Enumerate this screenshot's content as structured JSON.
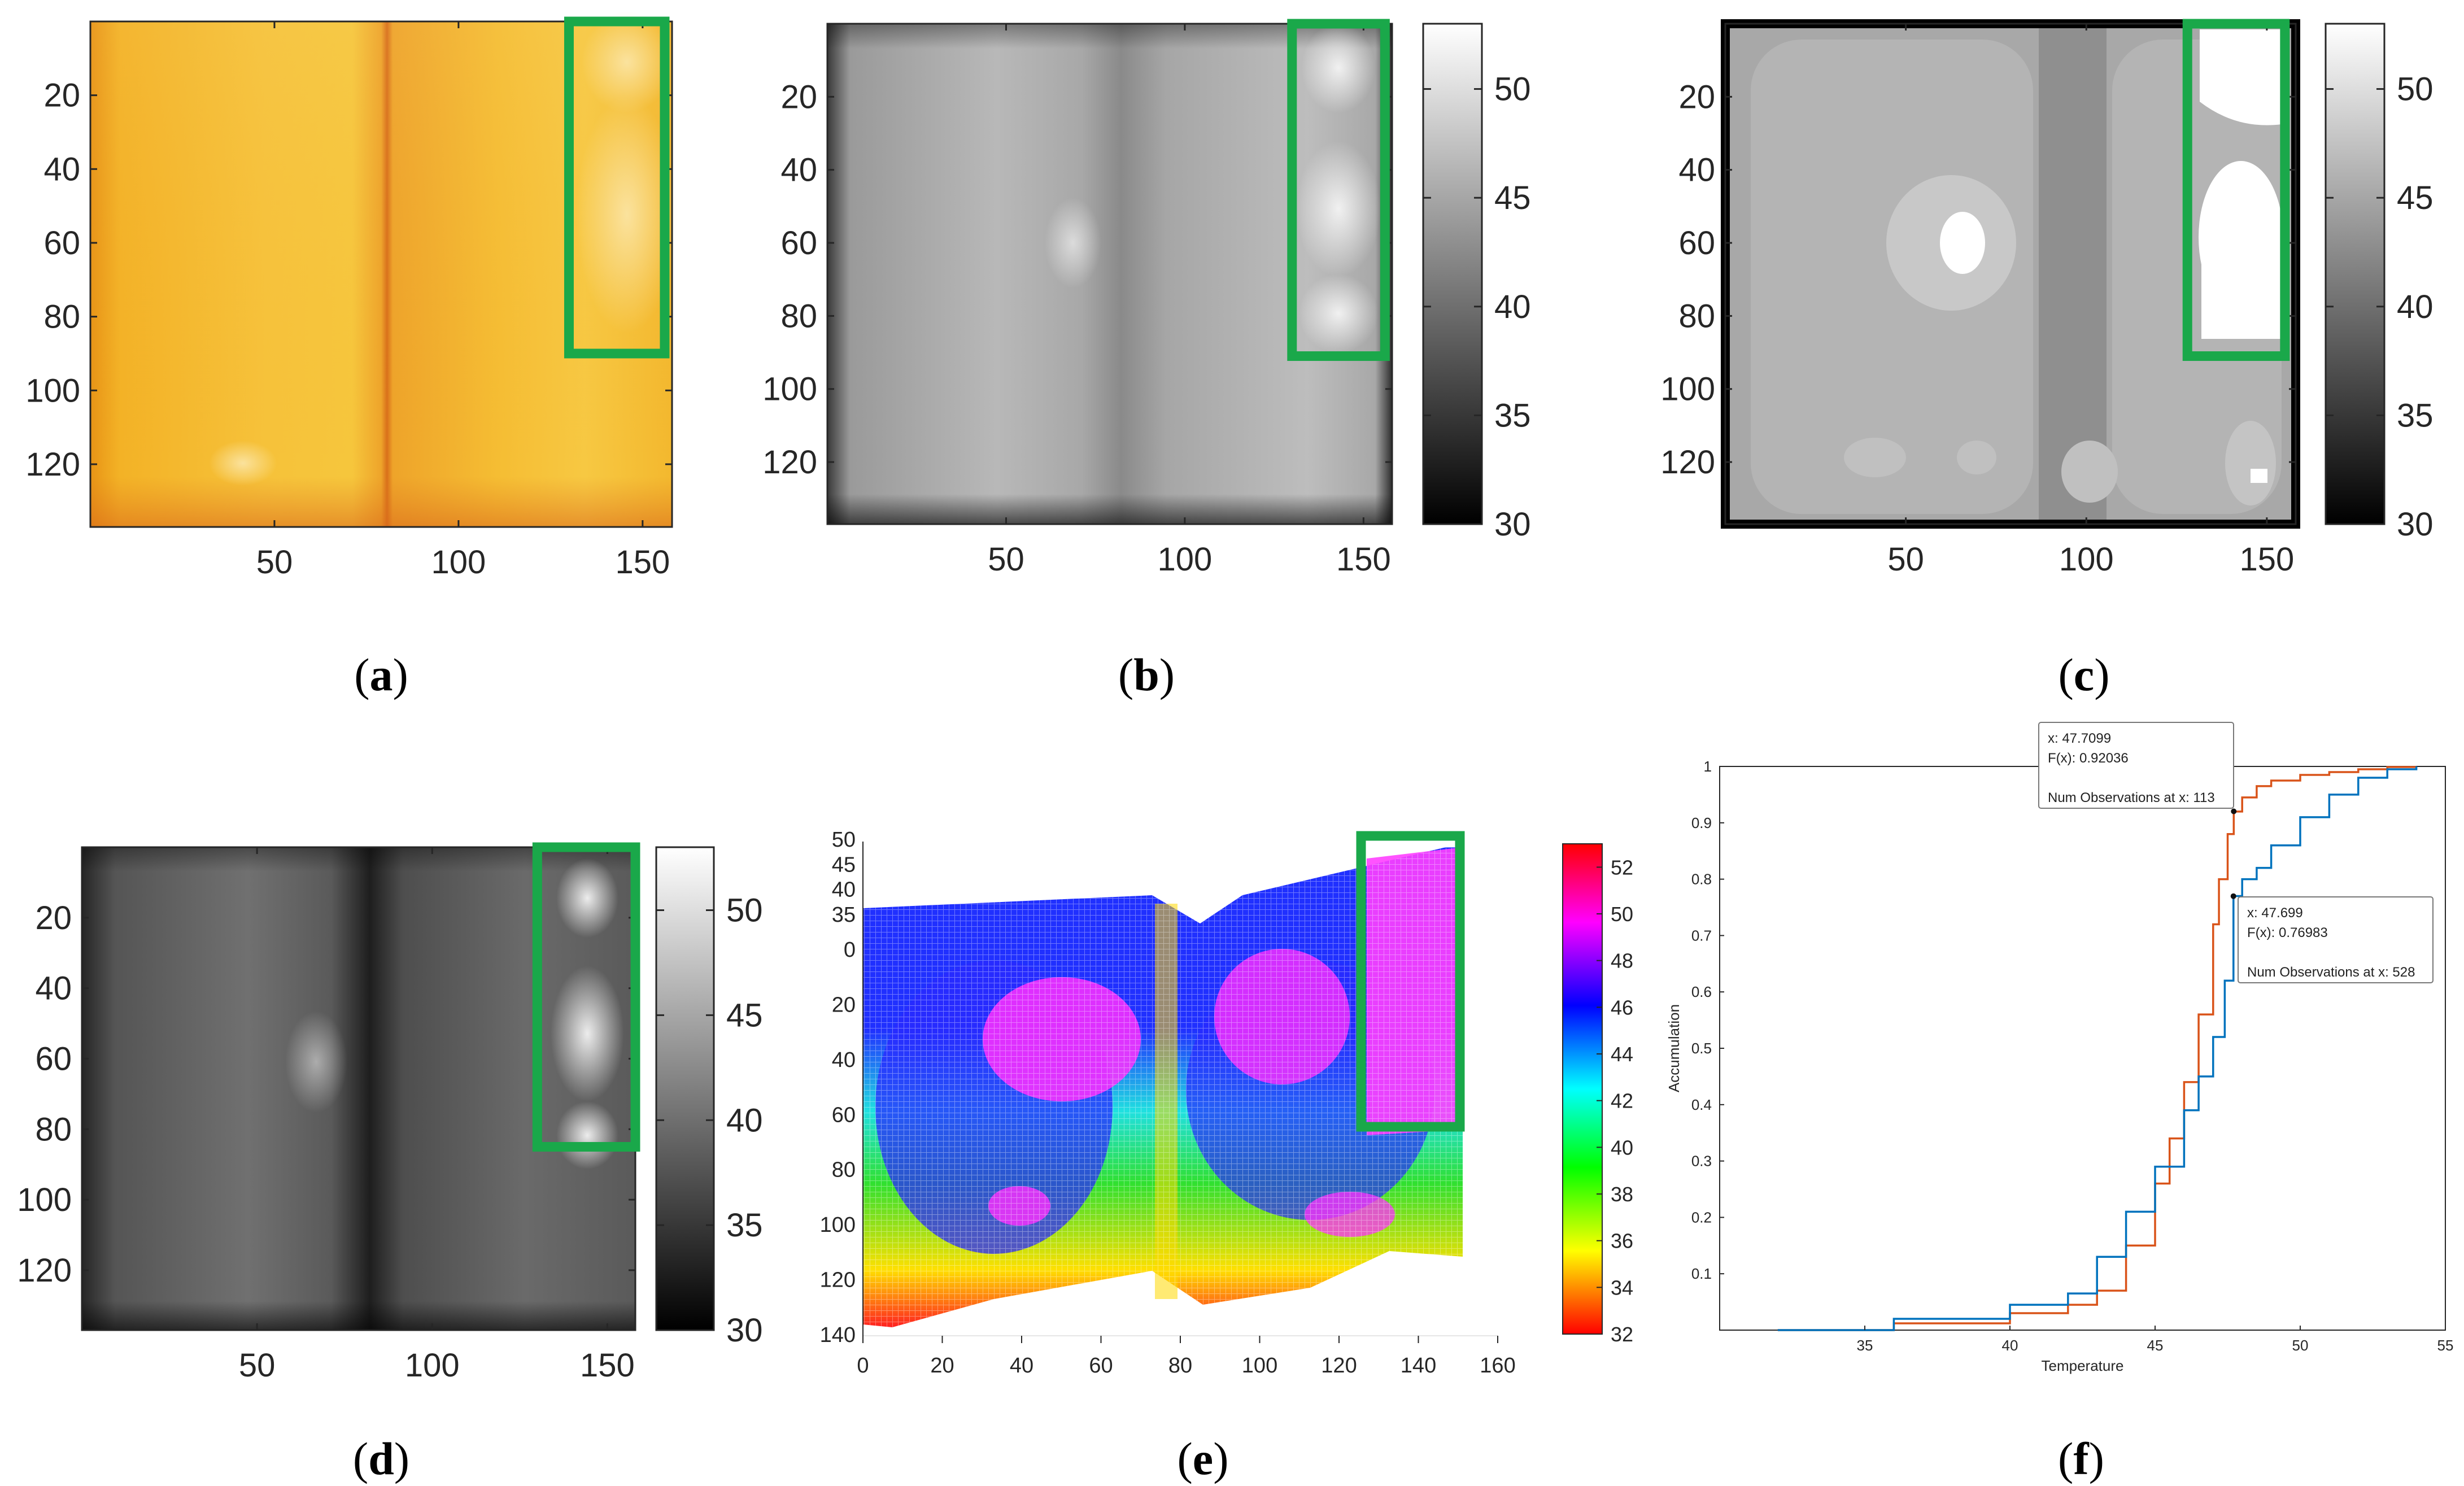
{
  "figure": {
    "captions": [
      {
        "open": "(",
        "letter": "a",
        "close": ")"
      },
      {
        "open": "(",
        "letter": "b",
        "close": ")"
      },
      {
        "open": "(",
        "letter": "c",
        "close": ")"
      },
      {
        "open": "(",
        "letter": "d",
        "close": ")"
      },
      {
        "open": "(",
        "letter": "e",
        "close": ")"
      },
      {
        "open": "(",
        "letter": "f",
        "close": ")"
      }
    ],
    "highlight_color": "#1aa84a"
  },
  "chart_data": [
    {
      "panel": "a",
      "type": "heatmap",
      "colormap": "hot-yellow",
      "xlim": [
        0,
        158
      ],
      "ylim": [
        0,
        137
      ],
      "xticks": [
        "50",
        "100",
        "150"
      ],
      "xtick_values": [
        50,
        100,
        150
      ],
      "yticks": [
        "20",
        "40",
        "60",
        "80",
        "100",
        "120"
      ],
      "ytick_values": [
        20,
        40,
        60,
        80,
        100,
        120
      ],
      "highlight_box": {
        "x0": 130,
        "x1": 156,
        "y0": 0,
        "y1": 90
      }
    },
    {
      "panel": "b",
      "type": "heatmap",
      "colormap": "gray",
      "xlim": [
        0,
        158
      ],
      "ylim": [
        0,
        137
      ],
      "xticks": [
        "50",
        "100",
        "150"
      ],
      "xtick_values": [
        50,
        100,
        150
      ],
      "yticks": [
        "20",
        "40",
        "60",
        "80",
        "100",
        "120"
      ],
      "ytick_values": [
        20,
        40,
        60,
        80,
        100,
        120
      ],
      "colorbar": {
        "ticks": [
          "30",
          "35",
          "40",
          "45",
          "50"
        ],
        "tick_values": [
          30,
          35,
          40,
          45,
          50
        ],
        "range": [
          30,
          53
        ]
      },
      "highlight_box": {
        "x0": 130,
        "x1": 156,
        "y0": 0,
        "y1": 91
      }
    },
    {
      "panel": "c",
      "type": "heatmap",
      "colormap": "gray-segmented",
      "xlim": [
        0,
        158
      ],
      "ylim": [
        0,
        137
      ],
      "xticks": [
        "50",
        "100",
        "150"
      ],
      "xtick_values": [
        50,
        100,
        150
      ],
      "yticks": [
        "20",
        "40",
        "60",
        "80",
        "100",
        "120"
      ],
      "ytick_values": [
        20,
        40,
        60,
        80,
        100,
        120
      ],
      "colorbar": {
        "ticks": [
          "30",
          "35",
          "40",
          "45",
          "50"
        ],
        "tick_values": [
          30,
          35,
          40,
          45,
          50
        ],
        "range": [
          30,
          53
        ]
      },
      "highlight_box": {
        "x0": 128,
        "x1": 155,
        "y0": 0,
        "y1": 91
      }
    },
    {
      "panel": "d",
      "type": "heatmap",
      "colormap": "gray",
      "xlim": [
        0,
        158
      ],
      "ylim": [
        0,
        137
      ],
      "xticks": [
        "50",
        "100",
        "150"
      ],
      "xtick_values": [
        50,
        100,
        150
      ],
      "yticks": [
        "20",
        "40",
        "60",
        "80",
        "100",
        "120"
      ],
      "ytick_values": [
        20,
        40,
        60,
        80,
        100,
        120
      ],
      "colorbar": {
        "ticks": [
          "30",
          "35",
          "40",
          "45",
          "50"
        ],
        "tick_values": [
          30,
          35,
          40,
          45,
          50
        ],
        "range": [
          30,
          53
        ]
      },
      "highlight_box": {
        "x0": 130,
        "x1": 158,
        "y0": 0,
        "y1": 85
      }
    },
    {
      "panel": "e",
      "type": "surface",
      "colormap": "hsv",
      "xlim": [
        0,
        160
      ],
      "xticks": [
        "0",
        "20",
        "40",
        "60",
        "80",
        "100",
        "120",
        "140",
        "160"
      ],
      "xtick_values": [
        0,
        20,
        40,
        60,
        80,
        100,
        120,
        140,
        160
      ],
      "yticks": [
        "0",
        "20",
        "40",
        "60",
        "80",
        "100",
        "120",
        "140"
      ],
      "ytick_values": [
        0,
        20,
        40,
        60,
        80,
        100,
        120,
        140
      ],
      "zticks": [
        "35",
        "40",
        "45",
        "50"
      ],
      "ztick_values": [
        35,
        40,
        45,
        50
      ],
      "colorbar": {
        "ticks": [
          "32",
          "34",
          "36",
          "38",
          "40",
          "42",
          "44",
          "46",
          "48",
          "50",
          "52"
        ],
        "tick_values": [
          32,
          34,
          36,
          38,
          40,
          42,
          44,
          46,
          48,
          50,
          52
        ],
        "range": [
          32,
          53
        ]
      }
    },
    {
      "panel": "f",
      "type": "line",
      "title": "",
      "xlabel": "Temperature",
      "ylabel": "Accumulation",
      "xlim": [
        30,
        55
      ],
      "ylim": [
        0,
        1
      ],
      "xticks": [
        "35",
        "40",
        "45",
        "50",
        "55"
      ],
      "xtick_values": [
        35,
        40,
        45,
        50,
        55
      ],
      "yticks": [
        "0.1",
        "0.2",
        "0.3",
        "0.4",
        "0.5",
        "0.6",
        "0.7",
        "0.8",
        "0.9",
        "1"
      ],
      "ytick_values": [
        0.1,
        0.2,
        0.3,
        0.4,
        0.5,
        0.6,
        0.7,
        0.8,
        0.9,
        1.0
      ],
      "series": [
        {
          "name": "orange",
          "color": "#d95319",
          "x": [
            32,
            36,
            40,
            42,
            43,
            44,
            45,
            45.5,
            46,
            46.5,
            47,
            47.2,
            47.5,
            47.71,
            48,
            48.5,
            49,
            50,
            51,
            52,
            53,
            54
          ],
          "y": [
            0,
            0.012,
            0.03,
            0.045,
            0.07,
            0.15,
            0.26,
            0.34,
            0.44,
            0.56,
            0.72,
            0.8,
            0.88,
            0.92,
            0.945,
            0.965,
            0.975,
            0.985,
            0.99,
            0.995,
            0.999,
            1.0
          ]
        },
        {
          "name": "blue",
          "color": "#0072bd",
          "x": [
            32,
            36,
            40,
            42,
            43,
            44,
            45,
            46,
            46.5,
            47,
            47.4,
            47.7,
            48,
            48.5,
            49,
            50,
            51,
            52,
            53,
            54
          ],
          "y": [
            0,
            0.02,
            0.045,
            0.065,
            0.13,
            0.21,
            0.29,
            0.39,
            0.45,
            0.52,
            0.62,
            0.77,
            0.8,
            0.82,
            0.86,
            0.91,
            0.95,
            0.98,
            0.995,
            1.0
          ]
        }
      ],
      "annotations": [
        {
          "series": "orange",
          "x": 47.7099,
          "y": 0.92036,
          "lines": [
            "x: 47.7099",
            "F(x): 0.92036",
            "",
            "Num Observations at x: 113"
          ]
        },
        {
          "series": "blue",
          "x": 47.699,
          "y": 0.76983,
          "lines": [
            "x: 47.699",
            "F(x): 0.76983",
            "",
            "Num Observations at x: 528"
          ]
        }
      ]
    }
  ]
}
